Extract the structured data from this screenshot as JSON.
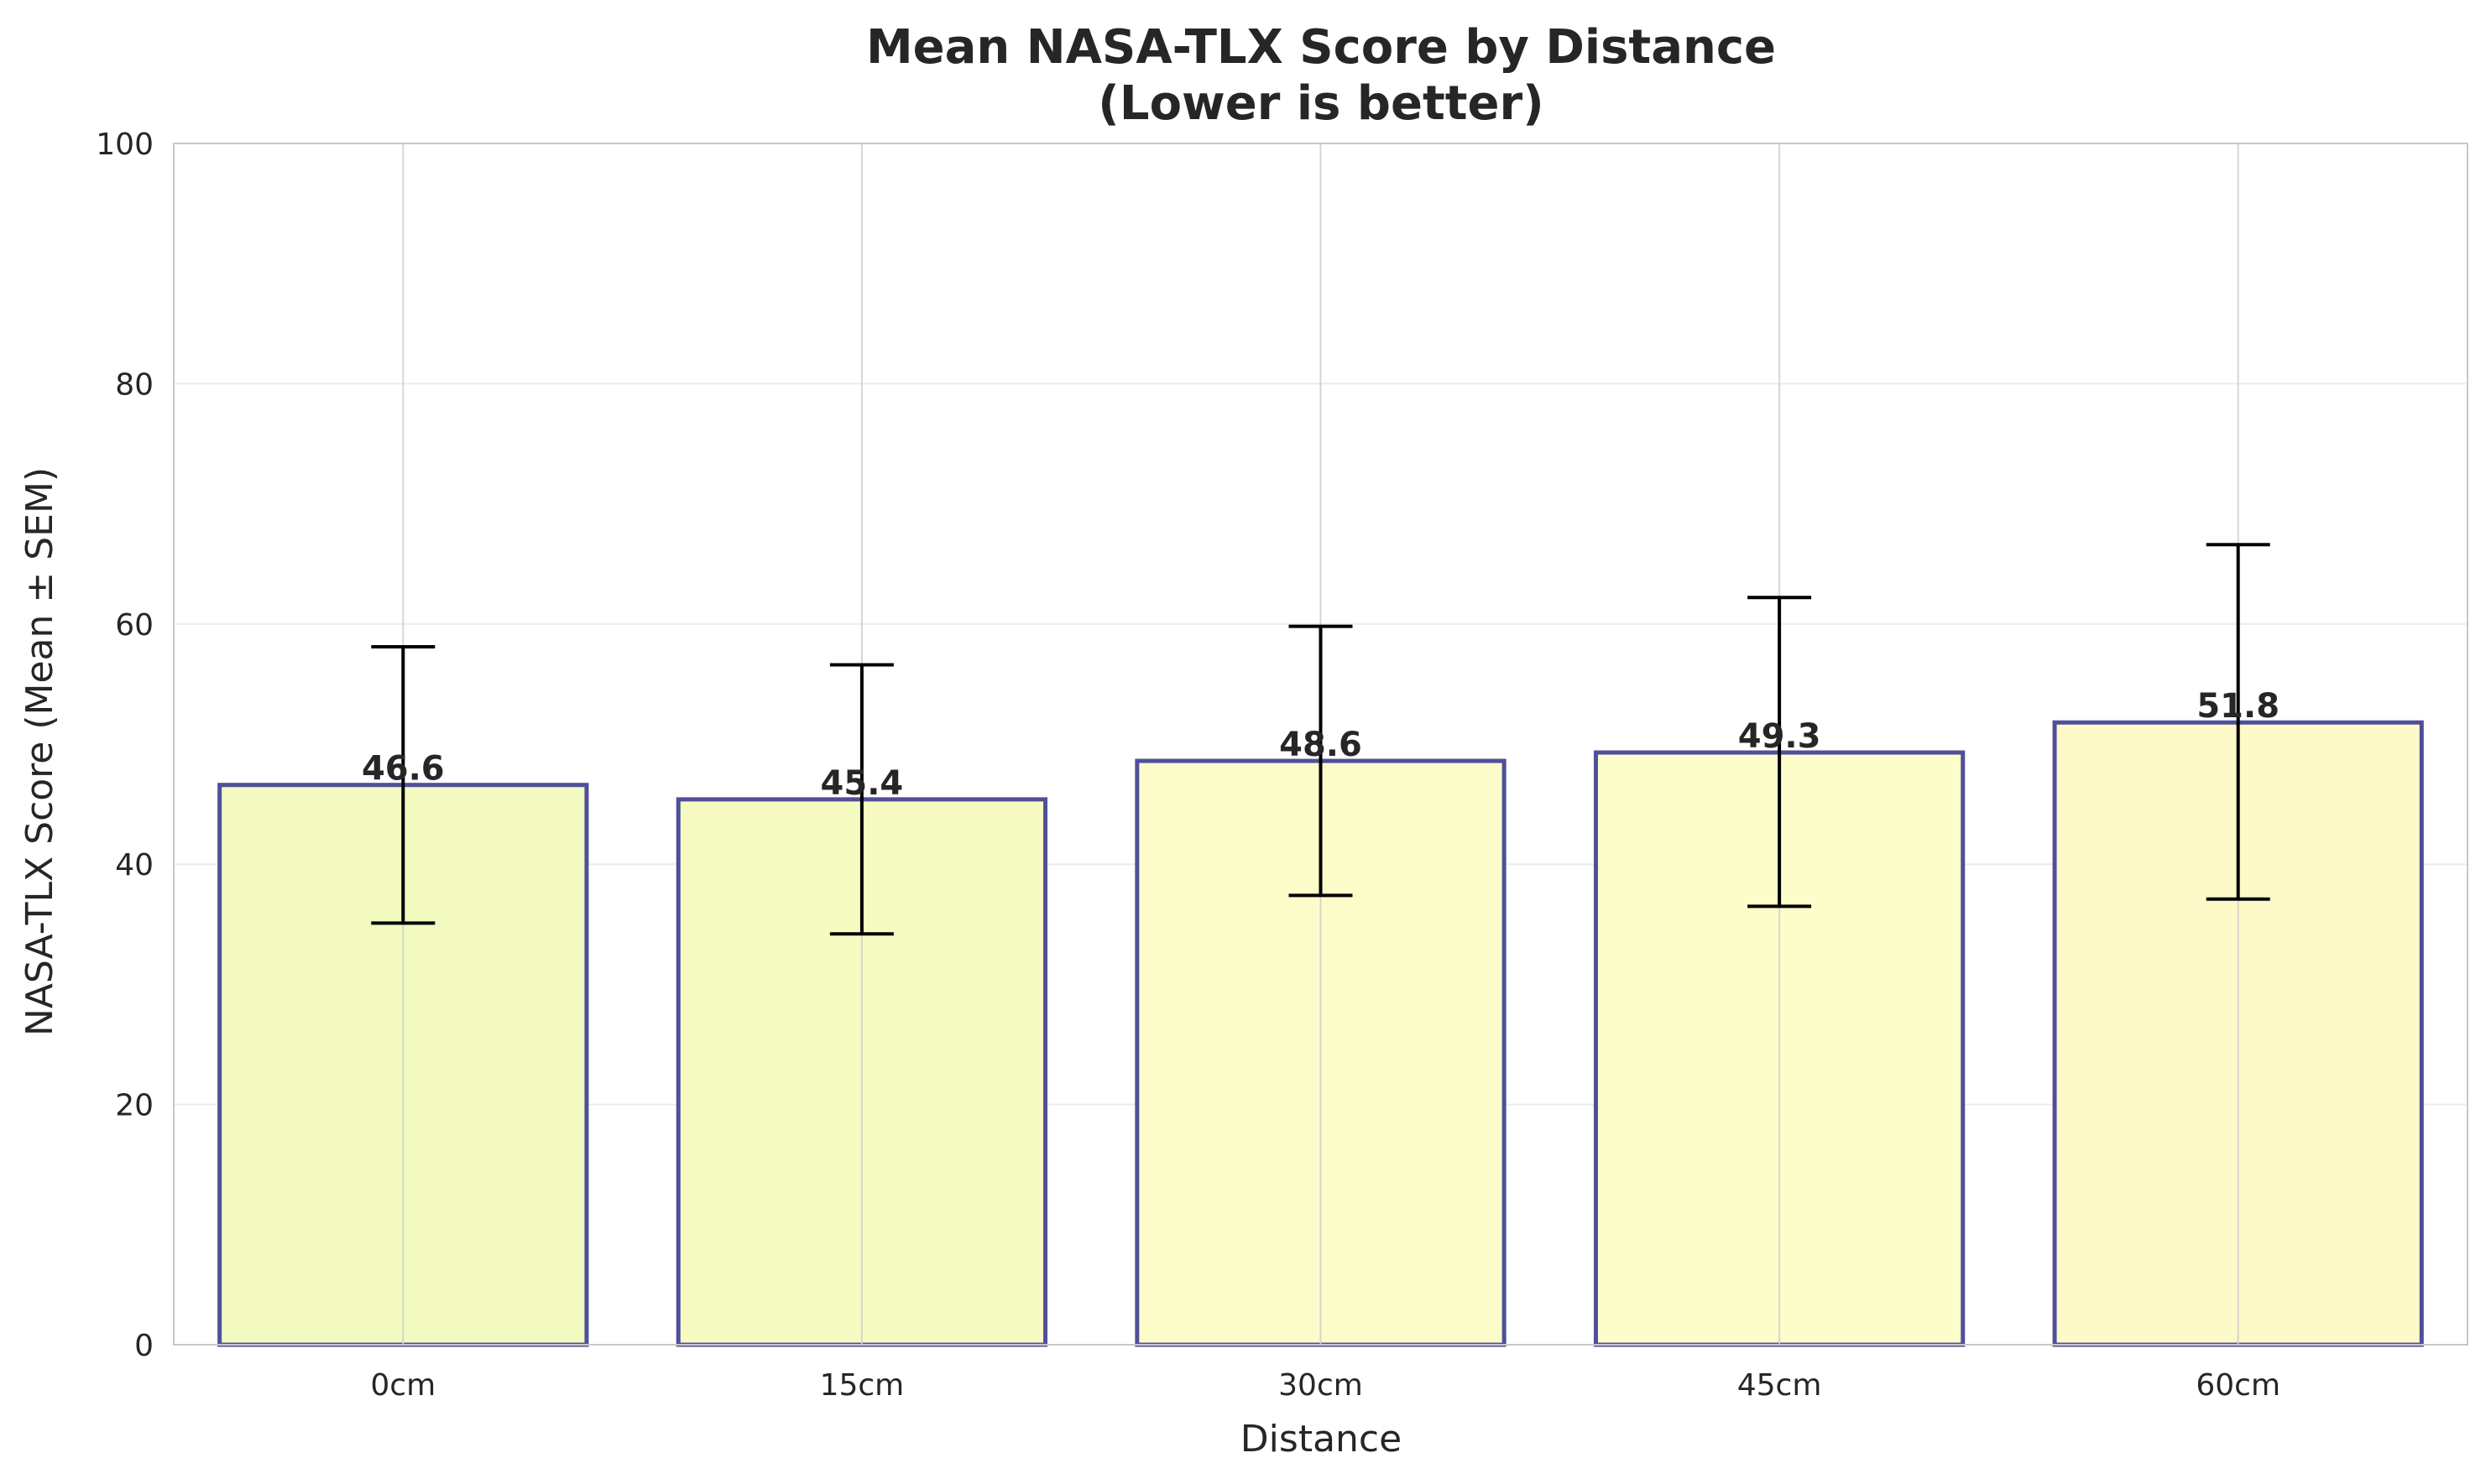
{
  "chart_data": {
    "type": "bar",
    "title": "Mean NASA-TLX Score by Distance",
    "subtitle": "(Lower is better)",
    "xlabel": "Distance",
    "ylabel": "NASA-TLX Score (Mean ± SEM)",
    "categories": [
      "0cm",
      "15cm",
      "30cm",
      "45cm",
      "60cm"
    ],
    "values": [
      46.6,
      45.4,
      48.6,
      49.3,
      51.8
    ],
    "value_labels": [
      "46.6",
      "45.4",
      "48.6",
      "49.3",
      "51.8"
    ],
    "error_bars": [
      {
        "low": 35.1,
        "high": 58.1
      },
      {
        "low": 34.2,
        "high": 56.6
      },
      {
        "low": 37.4,
        "high": 59.8
      },
      {
        "low": 36.5,
        "high": 62.2
      },
      {
        "low": 37.1,
        "high": 66.6
      }
    ],
    "ylim": [
      0,
      100
    ],
    "yticks": [
      "0",
      "20",
      "40",
      "60",
      "80",
      "100"
    ],
    "grid": true,
    "colors": {
      "bar_fills": [
        "#f2fabf",
        "#f6fbc2",
        "#fbfcc9",
        "#fdfdcb",
        "#fef9c8"
      ],
      "bar_edge": "#4f4f9a",
      "error_bar": "#000000",
      "grid": "#d9d9d9",
      "frame": "#c8c8c8"
    }
  }
}
